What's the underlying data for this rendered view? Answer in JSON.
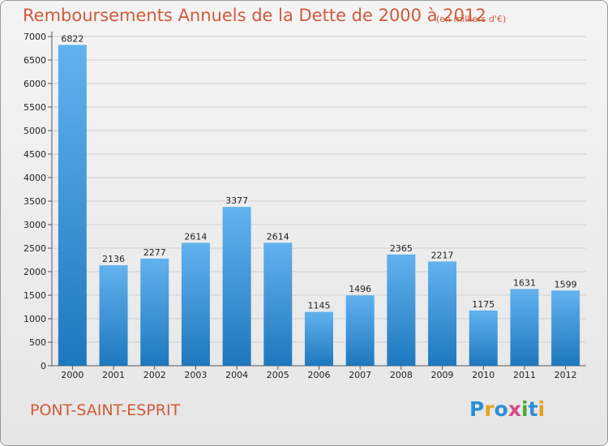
{
  "title": "Remboursements Annuels de la Dette de 2000 à 2012",
  "subtitle": "(en milliers d'€)",
  "commune": "PONT-SAINT-ESPRIT",
  "logo": {
    "text": "Proxiti",
    "letters": [
      {
        "ch": "P",
        "color": "#2a8fd6"
      },
      {
        "ch": "r",
        "color": "#e8a21a"
      },
      {
        "ch": "o",
        "color": "#2a8fd6"
      },
      {
        "ch": "x",
        "color": "#d64a86"
      },
      {
        "ch": "i",
        "color": "#4aa83a"
      },
      {
        "ch": "t",
        "color": "#2a8fd6"
      },
      {
        "ch": "i",
        "color": "#e8a21a"
      }
    ]
  },
  "colors": {
    "title": "#d05a3a",
    "bar_light": "#62b2ee",
    "bar_dark": "#1e78be",
    "grid": "#cfcfcf"
  },
  "chart_data": {
    "type": "bar",
    "title": "Remboursements Annuels de la Dette de 2000 à 2012",
    "subtitle": "(en milliers d'€)",
    "xlabel": "",
    "ylabel": "",
    "categories": [
      "2000",
      "2001",
      "2002",
      "2003",
      "2004",
      "2005",
      "2006",
      "2007",
      "2008",
      "2009",
      "2010",
      "2011",
      "2012"
    ],
    "values": [
      6822,
      2136,
      2277,
      2614,
      3377,
      2614,
      1145,
      1496,
      2365,
      2217,
      1175,
      1631,
      1599
    ],
    "ylim": [
      0,
      7000
    ],
    "yticks": [
      0,
      500,
      1000,
      1500,
      2000,
      2500,
      3000,
      3500,
      4000,
      4500,
      5000,
      5500,
      6000,
      6500,
      7000
    ],
    "grid": true,
    "data_labels": true
  }
}
